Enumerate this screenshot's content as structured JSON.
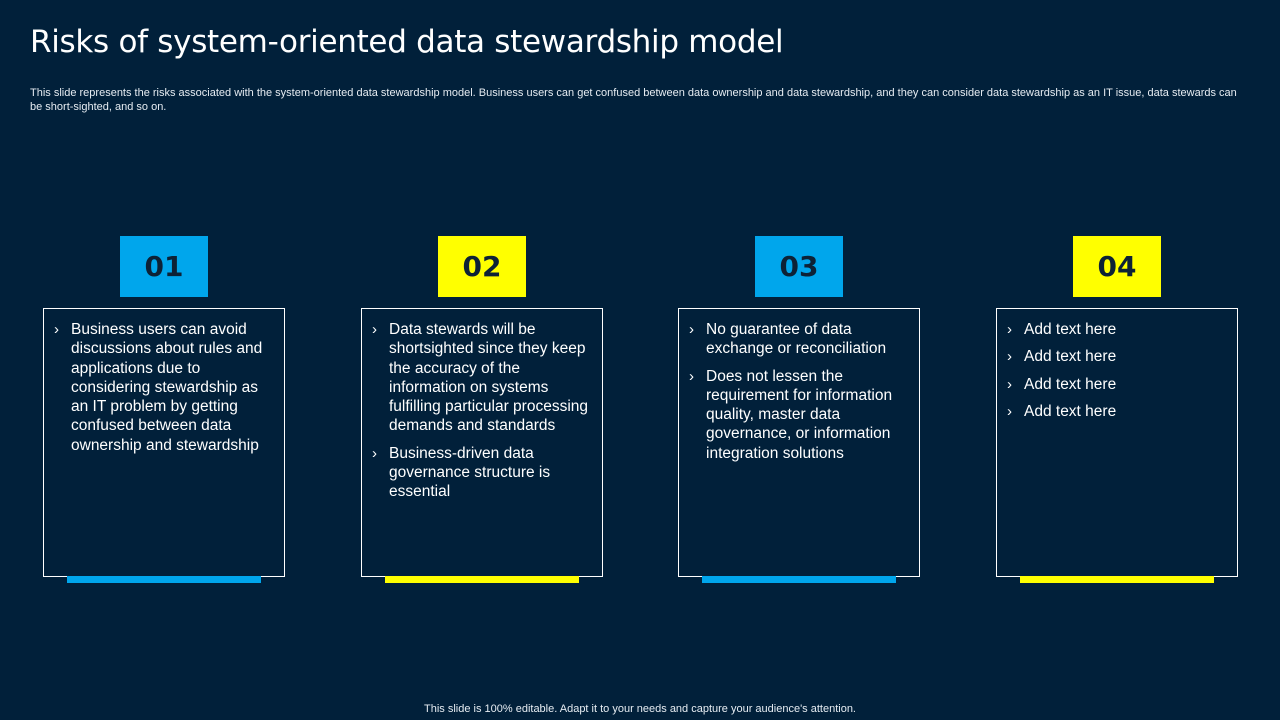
{
  "slide": {
    "title": "Risks of system-oriented data stewardship model",
    "subtitle": "This slide represents the risks associated with the system-oriented data stewardship model. Business users can get confused between data ownership and data stewardship, and they can consider data stewardship as an IT issue, data stewards can be short-sighted, and so on.",
    "footer": "This slide is 100% editable.  Adapt it to your needs and capture your audience's attention."
  },
  "colors": {
    "background": "#01203a",
    "blue": "#00a6ec",
    "yellow": "#ffff00"
  },
  "cards": [
    {
      "number": "01",
      "accent": "blue",
      "bullets": [
        "Business users can avoid discussions about rules and applications due to considering stewardship as an IT problem by getting confused between data ownership and stewardship"
      ]
    },
    {
      "number": "02",
      "accent": "yellow",
      "bullets": [
        "Data stewards will be shortsighted since they keep the accuracy of the information on systems fulfilling particular processing demands and standards",
        "Business-driven data governance structure is essential"
      ]
    },
    {
      "number": "03",
      "accent": "blue",
      "bullets": [
        "No guarantee of data exchange or reconciliation",
        "Does not lessen the requirement for information quality, master data governance, or information integration solutions"
      ]
    },
    {
      "number": "04",
      "accent": "yellow",
      "bullets": [
        "Add text here",
        "Add text here",
        "Add text here",
        "Add text here"
      ]
    }
  ]
}
